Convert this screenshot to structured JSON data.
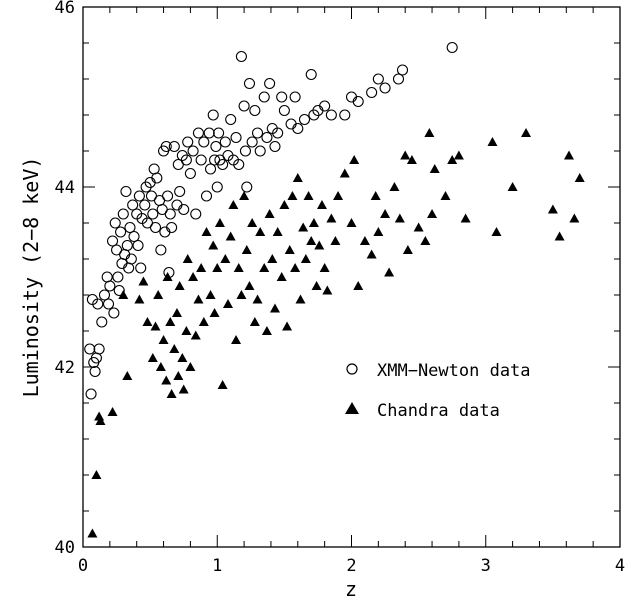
{
  "chart_data": {
    "type": "scatter",
    "xlabel": "z",
    "ylabel": "Luminosity (2−8 keV)",
    "xlim": [
      0,
      4
    ],
    "ylim": [
      40,
      46
    ],
    "x_ticks": [
      0,
      1,
      2,
      3,
      4
    ],
    "y_ticks": [
      40,
      42,
      44,
      46
    ],
    "grid": false,
    "legend_position": "right",
    "series": [
      {
        "name": "XMM−Newton data",
        "marker": "open-circle",
        "color": "#000000",
        "points": [
          [
            0.05,
            42.2
          ],
          [
            0.06,
            41.7
          ],
          [
            0.07,
            42.75
          ],
          [
            0.08,
            42.05
          ],
          [
            0.09,
            41.95
          ],
          [
            0.1,
            42.1
          ],
          [
            0.11,
            42.7
          ],
          [
            0.12,
            42.2
          ],
          [
            0.14,
            42.5
          ],
          [
            0.16,
            42.8
          ],
          [
            0.18,
            43.0
          ],
          [
            0.19,
            42.7
          ],
          [
            0.2,
            42.9
          ],
          [
            0.22,
            43.4
          ],
          [
            0.23,
            42.6
          ],
          [
            0.24,
            43.6
          ],
          [
            0.25,
            43.3
          ],
          [
            0.26,
            43.0
          ],
          [
            0.27,
            42.85
          ],
          [
            0.28,
            43.5
          ],
          [
            0.29,
            43.15
          ],
          [
            0.3,
            43.7
          ],
          [
            0.31,
            43.25
          ],
          [
            0.32,
            43.95
          ],
          [
            0.33,
            43.35
          ],
          [
            0.34,
            43.1
          ],
          [
            0.35,
            43.55
          ],
          [
            0.36,
            43.2
          ],
          [
            0.37,
            43.8
          ],
          [
            0.38,
            43.45
          ],
          [
            0.4,
            43.7
          ],
          [
            0.41,
            43.35
          ],
          [
            0.42,
            43.9
          ],
          [
            0.43,
            43.1
          ],
          [
            0.44,
            43.65
          ],
          [
            0.46,
            43.8
          ],
          [
            0.47,
            44.0
          ],
          [
            0.48,
            43.6
          ],
          [
            0.5,
            44.05
          ],
          [
            0.51,
            43.9
          ],
          [
            0.52,
            43.7
          ],
          [
            0.53,
            44.2
          ],
          [
            0.54,
            43.55
          ],
          [
            0.55,
            44.1
          ],
          [
            0.57,
            43.85
          ],
          [
            0.58,
            43.3
          ],
          [
            0.59,
            43.75
          ],
          [
            0.6,
            44.4
          ],
          [
            0.61,
            43.5
          ],
          [
            0.62,
            44.45
          ],
          [
            0.63,
            43.9
          ],
          [
            0.64,
            43.05
          ],
          [
            0.65,
            43.7
          ],
          [
            0.66,
            43.55
          ],
          [
            0.68,
            44.45
          ],
          [
            0.7,
            43.8
          ],
          [
            0.71,
            44.25
          ],
          [
            0.72,
            43.95
          ],
          [
            0.74,
            44.35
          ],
          [
            0.75,
            43.75
          ],
          [
            0.77,
            44.3
          ],
          [
            0.78,
            44.5
          ],
          [
            0.8,
            44.15
          ],
          [
            0.82,
            44.4
          ],
          [
            0.84,
            43.7
          ],
          [
            0.86,
            44.6
          ],
          [
            0.88,
            44.3
          ],
          [
            0.9,
            44.5
          ],
          [
            0.92,
            43.9
          ],
          [
            0.94,
            44.6
          ],
          [
            0.95,
            44.2
          ],
          [
            0.97,
            44.8
          ],
          [
            0.98,
            44.3
          ],
          [
            0.99,
            44.45
          ],
          [
            1.0,
            44.0
          ],
          [
            1.01,
            44.6
          ],
          [
            1.02,
            44.3
          ],
          [
            1.04,
            44.25
          ],
          [
            1.06,
            44.5
          ],
          [
            1.08,
            44.35
          ],
          [
            1.1,
            44.75
          ],
          [
            1.12,
            44.3
          ],
          [
            1.14,
            44.55
          ],
          [
            1.16,
            44.25
          ],
          [
            1.18,
            45.45
          ],
          [
            1.2,
            44.9
          ],
          [
            1.21,
            44.4
          ],
          [
            1.22,
            44.0
          ],
          [
            1.24,
            45.15
          ],
          [
            1.26,
            44.5
          ],
          [
            1.28,
            44.85
          ],
          [
            1.3,
            44.6
          ],
          [
            1.32,
            44.4
          ],
          [
            1.35,
            45.0
          ],
          [
            1.37,
            44.55
          ],
          [
            1.39,
            45.15
          ],
          [
            1.41,
            44.65
          ],
          [
            1.43,
            44.45
          ],
          [
            1.45,
            44.6
          ],
          [
            1.48,
            45.0
          ],
          [
            1.5,
            44.85
          ],
          [
            1.55,
            44.7
          ],
          [
            1.58,
            45.0
          ],
          [
            1.6,
            44.65
          ],
          [
            1.65,
            44.75
          ],
          [
            1.7,
            45.25
          ],
          [
            1.72,
            44.8
          ],
          [
            1.75,
            44.85
          ],
          [
            1.8,
            44.9
          ],
          [
            1.85,
            44.8
          ],
          [
            1.95,
            44.8
          ],
          [
            2.0,
            45.0
          ],
          [
            2.05,
            44.95
          ],
          [
            2.15,
            45.05
          ],
          [
            2.2,
            45.2
          ],
          [
            2.25,
            45.1
          ],
          [
            2.35,
            45.2
          ],
          [
            2.38,
            45.3
          ],
          [
            2.75,
            45.55
          ]
        ]
      },
      {
        "name": "Chandra data",
        "marker": "filled-triangle",
        "color": "#000000",
        "points": [
          [
            0.07,
            40.15
          ],
          [
            0.1,
            40.8
          ],
          [
            0.12,
            41.45
          ],
          [
            0.13,
            41.4
          ],
          [
            0.22,
            41.5
          ],
          [
            0.3,
            42.8
          ],
          [
            0.33,
            41.9
          ],
          [
            0.42,
            42.75
          ],
          [
            0.45,
            42.95
          ],
          [
            0.48,
            42.5
          ],
          [
            0.52,
            42.1
          ],
          [
            0.54,
            42.45
          ],
          [
            0.56,
            42.8
          ],
          [
            0.58,
            42.0
          ],
          [
            0.6,
            42.3
          ],
          [
            0.62,
            41.85
          ],
          [
            0.63,
            43.0
          ],
          [
            0.65,
            42.5
          ],
          [
            0.66,
            41.7
          ],
          [
            0.68,
            42.2
          ],
          [
            0.7,
            42.6
          ],
          [
            0.71,
            41.9
          ],
          [
            0.72,
            42.9
          ],
          [
            0.74,
            42.1
          ],
          [
            0.75,
            41.75
          ],
          [
            0.77,
            42.4
          ],
          [
            0.78,
            43.2
          ],
          [
            0.8,
            42.0
          ],
          [
            0.82,
            43.0
          ],
          [
            0.84,
            42.35
          ],
          [
            0.86,
            42.75
          ],
          [
            0.88,
            43.1
          ],
          [
            0.9,
            42.5
          ],
          [
            0.92,
            43.5
          ],
          [
            0.95,
            42.8
          ],
          [
            0.97,
            43.35
          ],
          [
            0.98,
            42.6
          ],
          [
            1.0,
            43.1
          ],
          [
            1.02,
            43.6
          ],
          [
            1.04,
            41.8
          ],
          [
            1.06,
            43.2
          ],
          [
            1.08,
            42.7
          ],
          [
            1.1,
            43.45
          ],
          [
            1.12,
            43.8
          ],
          [
            1.14,
            42.3
          ],
          [
            1.16,
            43.1
          ],
          [
            1.18,
            42.8
          ],
          [
            1.2,
            43.9
          ],
          [
            1.22,
            43.3
          ],
          [
            1.24,
            42.9
          ],
          [
            1.26,
            43.6
          ],
          [
            1.28,
            42.5
          ],
          [
            1.3,
            42.75
          ],
          [
            1.32,
            43.5
          ],
          [
            1.35,
            43.1
          ],
          [
            1.37,
            42.4
          ],
          [
            1.39,
            43.7
          ],
          [
            1.41,
            43.2
          ],
          [
            1.43,
            42.65
          ],
          [
            1.45,
            43.5
          ],
          [
            1.48,
            43.0
          ],
          [
            1.5,
            43.8
          ],
          [
            1.52,
            42.45
          ],
          [
            1.54,
            43.3
          ],
          [
            1.56,
            43.9
          ],
          [
            1.58,
            43.1
          ],
          [
            1.6,
            44.1
          ],
          [
            1.62,
            42.75
          ],
          [
            1.64,
            43.55
          ],
          [
            1.66,
            43.2
          ],
          [
            1.68,
            43.9
          ],
          [
            1.7,
            43.4
          ],
          [
            1.72,
            43.6
          ],
          [
            1.74,
            42.9
          ],
          [
            1.76,
            43.35
          ],
          [
            1.78,
            43.8
          ],
          [
            1.8,
            43.1
          ],
          [
            1.82,
            42.85
          ],
          [
            1.85,
            43.65
          ],
          [
            1.88,
            43.4
          ],
          [
            1.9,
            43.9
          ],
          [
            1.95,
            44.15
          ],
          [
            2.0,
            43.6
          ],
          [
            2.02,
            44.3
          ],
          [
            2.05,
            42.9
          ],
          [
            2.1,
            43.4
          ],
          [
            2.15,
            43.25
          ],
          [
            2.18,
            43.9
          ],
          [
            2.2,
            43.5
          ],
          [
            2.25,
            43.7
          ],
          [
            2.28,
            43.05
          ],
          [
            2.32,
            44.0
          ],
          [
            2.36,
            43.65
          ],
          [
            2.4,
            44.35
          ],
          [
            2.42,
            43.3
          ],
          [
            2.45,
            44.3
          ],
          [
            2.5,
            43.55
          ],
          [
            2.55,
            43.4
          ],
          [
            2.58,
            44.6
          ],
          [
            2.6,
            43.7
          ],
          [
            2.62,
            44.2
          ],
          [
            2.7,
            43.9
          ],
          [
            2.75,
            44.3
          ],
          [
            2.8,
            44.35
          ],
          [
            2.85,
            43.65
          ],
          [
            3.05,
            44.5
          ],
          [
            3.08,
            43.5
          ],
          [
            3.2,
            44.0
          ],
          [
            3.3,
            44.6
          ],
          [
            3.5,
            43.75
          ],
          [
            3.55,
            43.45
          ],
          [
            3.62,
            44.35
          ],
          [
            3.66,
            43.65
          ],
          [
            3.7,
            44.1
          ]
        ]
      }
    ]
  }
}
